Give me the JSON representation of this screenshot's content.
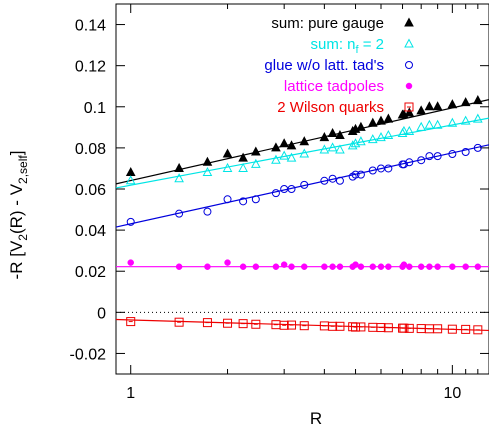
{
  "chart_data": {
    "type": "scatter",
    "xlabel": "R",
    "ylabel": "-R [V_2(R) - V_2,self]",
    "xscale": "log",
    "xlim": [
      0.9,
      13
    ],
    "ylim": [
      -0.03,
      0.15
    ],
    "x_ticks": [
      {
        "value": 1,
        "label": "1"
      },
      {
        "value": 10,
        "label": "10"
      }
    ],
    "y_ticks": [
      {
        "value": -0.02,
        "label": "-0.02"
      },
      {
        "value": 0,
        "label": "0"
      },
      {
        "value": 0.02,
        "label": "0.02"
      },
      {
        "value": 0.04,
        "label": "0.04"
      },
      {
        "value": 0.06,
        "label": "0.06"
      },
      {
        "value": 0.08,
        "label": "0.08"
      },
      {
        "value": 0.1,
        "label": "0.1"
      },
      {
        "value": 0.12,
        "label": "0.12"
      },
      {
        "value": 0.14,
        "label": "0.14"
      }
    ],
    "zero_line": true,
    "legend_position": "top-right",
    "series": [
      {
        "name": "sum: pure gauge",
        "marker": "filled-triangle",
        "color": "#000000",
        "fit": [
          [
            0.9,
            0.0625
          ],
          [
            13,
            0.1035
          ]
        ],
        "points": [
          [
            1,
            0.068
          ],
          [
            1.414,
            0.07
          ],
          [
            1.732,
            0.073
          ],
          [
            2,
            0.077
          ],
          [
            2.236,
            0.075
          ],
          [
            2.449,
            0.078
          ],
          [
            2.828,
            0.08
          ],
          [
            3,
            0.082
          ],
          [
            3.162,
            0.081
          ],
          [
            3.464,
            0.083
          ],
          [
            4,
            0.085
          ],
          [
            4.243,
            0.087
          ],
          [
            4.472,
            0.086
          ],
          [
            4.899,
            0.088
          ],
          [
            5,
            0.089
          ],
          [
            5.196,
            0.09
          ],
          [
            5.657,
            0.092
          ],
          [
            6,
            0.093
          ],
          [
            6.325,
            0.094
          ],
          [
            7,
            0.096
          ],
          [
            7.071,
            0.096
          ],
          [
            7.348,
            0.097
          ],
          [
            8,
            0.098
          ],
          [
            8.485,
            0.1
          ],
          [
            9,
            0.1
          ],
          [
            10,
            0.101
          ],
          [
            11,
            0.102
          ],
          [
            12,
            0.103
          ]
        ]
      },
      {
        "name": "sum: n_f = 2",
        "name_main": "sum: n",
        "name_sub": "f",
        "name_rest": " = 2",
        "marker": "open-triangle",
        "color": "#00e5e5",
        "fit": [
          [
            0.9,
            0.0605
          ],
          [
            13,
            0.0945
          ]
        ],
        "points": [
          [
            1,
            0.064
          ],
          [
            1.414,
            0.065
          ],
          [
            1.732,
            0.068
          ],
          [
            2,
            0.07
          ],
          [
            2.236,
            0.07
          ],
          [
            2.449,
            0.072
          ],
          [
            2.828,
            0.074
          ],
          [
            3,
            0.076
          ],
          [
            3.162,
            0.075
          ],
          [
            3.464,
            0.077
          ],
          [
            4,
            0.079
          ],
          [
            4.243,
            0.08
          ],
          [
            4.472,
            0.079
          ],
          [
            4.899,
            0.081
          ],
          [
            5,
            0.082
          ],
          [
            5.196,
            0.083
          ],
          [
            5.657,
            0.084
          ],
          [
            6,
            0.085
          ],
          [
            6.325,
            0.086
          ],
          [
            7,
            0.087
          ],
          [
            7.071,
            0.088
          ],
          [
            7.348,
            0.088
          ],
          [
            8,
            0.09
          ],
          [
            8.485,
            0.091
          ],
          [
            9,
            0.091
          ],
          [
            10,
            0.092
          ],
          [
            11,
            0.093
          ],
          [
            12,
            0.094
          ]
        ]
      },
      {
        "name": "glue w/o latt. tad's",
        "marker": "open-circle",
        "color": "#0000dd",
        "fit": [
          [
            0.9,
            0.0415
          ],
          [
            13,
            0.0815
          ]
        ],
        "points": [
          [
            1,
            0.044
          ],
          [
            1.414,
            0.048
          ],
          [
            1.732,
            0.049
          ],
          [
            2,
            0.055
          ],
          [
            2.236,
            0.054
          ],
          [
            2.449,
            0.055
          ],
          [
            2.828,
            0.058
          ],
          [
            3,
            0.06
          ],
          [
            3.162,
            0.06
          ],
          [
            3.464,
            0.062
          ],
          [
            4,
            0.064
          ],
          [
            4.243,
            0.065
          ],
          [
            4.472,
            0.064
          ],
          [
            4.899,
            0.066
          ],
          [
            5,
            0.067
          ],
          [
            5.196,
            0.067
          ],
          [
            5.657,
            0.069
          ],
          [
            6,
            0.07
          ],
          [
            6.325,
            0.07
          ],
          [
            7,
            0.072
          ],
          [
            7.071,
            0.072
          ],
          [
            7.348,
            0.073
          ],
          [
            8,
            0.074
          ],
          [
            8.485,
            0.076
          ],
          [
            9,
            0.076
          ],
          [
            10,
            0.077
          ],
          [
            11,
            0.078
          ],
          [
            12,
            0.08
          ]
        ]
      },
      {
        "name": "lattice tadpoles",
        "marker": "filled-circle",
        "color": "#ff00ff",
        "fit": [
          [
            0.9,
            0.0222
          ],
          [
            13,
            0.0222
          ]
        ],
        "points": [
          [
            1,
            0.0242
          ],
          [
            1.414,
            0.0222
          ],
          [
            1.732,
            0.0222
          ],
          [
            2,
            0.0242
          ],
          [
            2.236,
            0.0222
          ],
          [
            2.449,
            0.0222
          ],
          [
            2.828,
            0.0222
          ],
          [
            3,
            0.0232
          ],
          [
            3.162,
            0.0222
          ],
          [
            3.464,
            0.0222
          ],
          [
            4,
            0.0222
          ],
          [
            4.243,
            0.0222
          ],
          [
            4.472,
            0.0222
          ],
          [
            4.899,
            0.0222
          ],
          [
            5,
            0.0232
          ],
          [
            5.196,
            0.0222
          ],
          [
            5.657,
            0.0222
          ],
          [
            6,
            0.0222
          ],
          [
            6.325,
            0.0222
          ],
          [
            7,
            0.0222
          ],
          [
            7.071,
            0.0232
          ],
          [
            7.348,
            0.0222
          ],
          [
            8,
            0.0222
          ],
          [
            8.485,
            0.0222
          ],
          [
            9,
            0.0222
          ],
          [
            10,
            0.0222
          ],
          [
            11,
            0.0222
          ],
          [
            12,
            0.0222
          ]
        ]
      },
      {
        "name": "2 Wilson quarks",
        "marker": "open-square",
        "color": "#ee0000",
        "fit": [
          [
            0.9,
            -0.0035
          ],
          [
            13,
            -0.0088
          ]
        ],
        "points": [
          [
            1,
            -0.0045
          ],
          [
            1.414,
            -0.0048
          ],
          [
            1.732,
            -0.005
          ],
          [
            2,
            -0.0053
          ],
          [
            2.236,
            -0.0055
          ],
          [
            2.449,
            -0.0058
          ],
          [
            2.828,
            -0.006
          ],
          [
            3,
            -0.0063
          ],
          [
            3.162,
            -0.0062
          ],
          [
            3.464,
            -0.0065
          ],
          [
            4,
            -0.0066
          ],
          [
            4.243,
            -0.0068
          ],
          [
            4.472,
            -0.0068
          ],
          [
            4.899,
            -0.007
          ],
          [
            5,
            -0.0072
          ],
          [
            5.196,
            -0.0071
          ],
          [
            5.657,
            -0.0073
          ],
          [
            6,
            -0.0074
          ],
          [
            6.325,
            -0.0075
          ],
          [
            7,
            -0.0077
          ],
          [
            7.071,
            -0.0077
          ],
          [
            7.348,
            -0.0078
          ],
          [
            8,
            -0.0079
          ],
          [
            8.485,
            -0.008
          ],
          [
            9,
            -0.008
          ],
          [
            10,
            -0.0082
          ],
          [
            11,
            -0.0083
          ],
          [
            12,
            -0.0085
          ]
        ]
      }
    ]
  }
}
